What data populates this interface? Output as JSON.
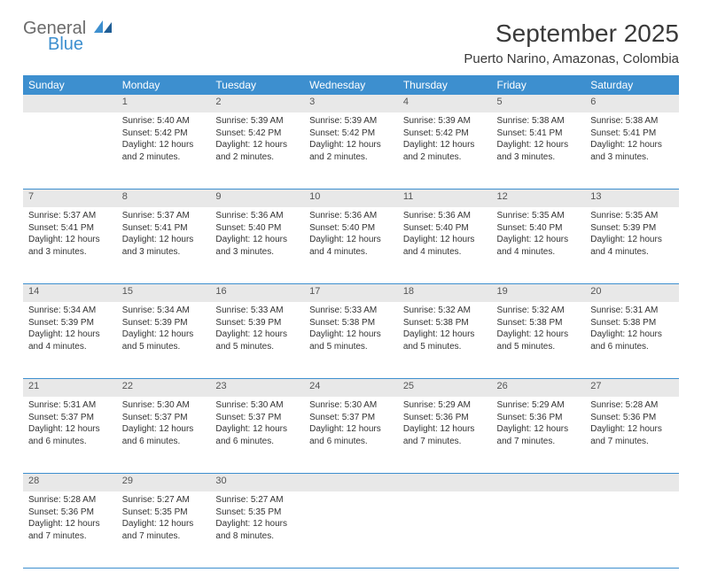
{
  "brand": {
    "general": "General",
    "blue": "Blue"
  },
  "title": "September 2025",
  "location": "Puerto Narino, Amazonas, Colombia",
  "weekdays": [
    "Sunday",
    "Monday",
    "Tuesday",
    "Wednesday",
    "Thursday",
    "Friday",
    "Saturday"
  ],
  "colors": {
    "header_bg": "#3d8fcf",
    "header_fg": "#ffffff",
    "daynum_bg": "#e8e8e8",
    "rule": "#3d8fcf"
  },
  "typography": {
    "title_fontsize": 28,
    "location_fontsize": 15,
    "weekday_fontsize": 12,
    "cell_fontsize": 10
  },
  "weeks": [
    {
      "nums": [
        "",
        "1",
        "2",
        "3",
        "4",
        "5",
        "6"
      ],
      "cells": [
        null,
        {
          "sr": "5:40 AM",
          "ss": "5:42 PM",
          "dl": "12 hours and 2 minutes."
        },
        {
          "sr": "5:39 AM",
          "ss": "5:42 PM",
          "dl": "12 hours and 2 minutes."
        },
        {
          "sr": "5:39 AM",
          "ss": "5:42 PM",
          "dl": "12 hours and 2 minutes."
        },
        {
          "sr": "5:39 AM",
          "ss": "5:42 PM",
          "dl": "12 hours and 2 minutes."
        },
        {
          "sr": "5:38 AM",
          "ss": "5:41 PM",
          "dl": "12 hours and 3 minutes."
        },
        {
          "sr": "5:38 AM",
          "ss": "5:41 PM",
          "dl": "12 hours and 3 minutes."
        }
      ]
    },
    {
      "nums": [
        "7",
        "8",
        "9",
        "10",
        "11",
        "12",
        "13"
      ],
      "cells": [
        {
          "sr": "5:37 AM",
          "ss": "5:41 PM",
          "dl": "12 hours and 3 minutes."
        },
        {
          "sr": "5:37 AM",
          "ss": "5:41 PM",
          "dl": "12 hours and 3 minutes."
        },
        {
          "sr": "5:36 AM",
          "ss": "5:40 PM",
          "dl": "12 hours and 3 minutes."
        },
        {
          "sr": "5:36 AM",
          "ss": "5:40 PM",
          "dl": "12 hours and 4 minutes."
        },
        {
          "sr": "5:36 AM",
          "ss": "5:40 PM",
          "dl": "12 hours and 4 minutes."
        },
        {
          "sr": "5:35 AM",
          "ss": "5:40 PM",
          "dl": "12 hours and 4 minutes."
        },
        {
          "sr": "5:35 AM",
          "ss": "5:39 PM",
          "dl": "12 hours and 4 minutes."
        }
      ]
    },
    {
      "nums": [
        "14",
        "15",
        "16",
        "17",
        "18",
        "19",
        "20"
      ],
      "cells": [
        {
          "sr": "5:34 AM",
          "ss": "5:39 PM",
          "dl": "12 hours and 4 minutes."
        },
        {
          "sr": "5:34 AM",
          "ss": "5:39 PM",
          "dl": "12 hours and 5 minutes."
        },
        {
          "sr": "5:33 AM",
          "ss": "5:39 PM",
          "dl": "12 hours and 5 minutes."
        },
        {
          "sr": "5:33 AM",
          "ss": "5:38 PM",
          "dl": "12 hours and 5 minutes."
        },
        {
          "sr": "5:32 AM",
          "ss": "5:38 PM",
          "dl": "12 hours and 5 minutes."
        },
        {
          "sr": "5:32 AM",
          "ss": "5:38 PM",
          "dl": "12 hours and 5 minutes."
        },
        {
          "sr": "5:31 AM",
          "ss": "5:38 PM",
          "dl": "12 hours and 6 minutes."
        }
      ]
    },
    {
      "nums": [
        "21",
        "22",
        "23",
        "24",
        "25",
        "26",
        "27"
      ],
      "cells": [
        {
          "sr": "5:31 AM",
          "ss": "5:37 PM",
          "dl": "12 hours and 6 minutes."
        },
        {
          "sr": "5:30 AM",
          "ss": "5:37 PM",
          "dl": "12 hours and 6 minutes."
        },
        {
          "sr": "5:30 AM",
          "ss": "5:37 PM",
          "dl": "12 hours and 6 minutes."
        },
        {
          "sr": "5:30 AM",
          "ss": "5:37 PM",
          "dl": "12 hours and 6 minutes."
        },
        {
          "sr": "5:29 AM",
          "ss": "5:36 PM",
          "dl": "12 hours and 7 minutes."
        },
        {
          "sr": "5:29 AM",
          "ss": "5:36 PM",
          "dl": "12 hours and 7 minutes."
        },
        {
          "sr": "5:28 AM",
          "ss": "5:36 PM",
          "dl": "12 hours and 7 minutes."
        }
      ]
    },
    {
      "nums": [
        "28",
        "29",
        "30",
        "",
        "",
        "",
        ""
      ],
      "cells": [
        {
          "sr": "5:28 AM",
          "ss": "5:36 PM",
          "dl": "12 hours and 7 minutes."
        },
        {
          "sr": "5:27 AM",
          "ss": "5:35 PM",
          "dl": "12 hours and 7 minutes."
        },
        {
          "sr": "5:27 AM",
          "ss": "5:35 PM",
          "dl": "12 hours and 8 minutes."
        },
        null,
        null,
        null,
        null
      ]
    }
  ],
  "labels": {
    "sunrise": "Sunrise:",
    "sunset": "Sunset:",
    "daylight": "Daylight:"
  }
}
